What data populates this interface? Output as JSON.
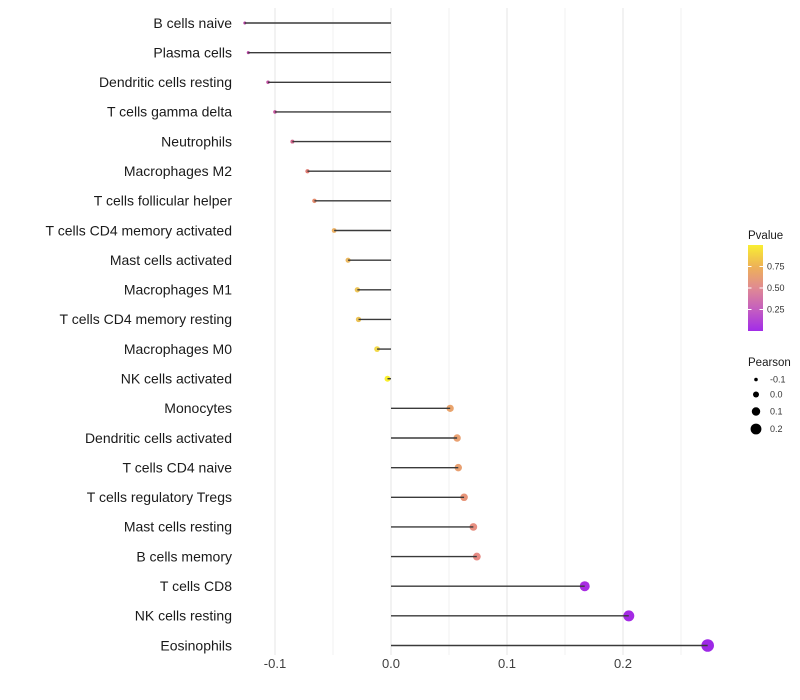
{
  "figure": {
    "description": "Horizontal lollipop chart of Pearson correlation for 22 immune cell types, dot color mapped to Pvalue (yellow high, purple low) and dot size mapped to Pearson value"
  },
  "chart_data": {
    "type": "scatter",
    "variant": "lollipop",
    "orientation": "horizontal",
    "title": "",
    "xlabel": "",
    "ylabel": "",
    "xlim": [
      -0.146,
      0.29
    ],
    "grid": "vertical-only",
    "x_ticks": [
      -0.1,
      0.0,
      0.1,
      0.2
    ],
    "x_tick_labels": [
      "-0.1",
      "0.0",
      "0.1",
      "0.2"
    ],
    "x_minor_ticks": [
      -0.05,
      0.05,
      0.15,
      0.25
    ],
    "categories": [
      "B cells naive",
      "Plasma cells",
      "Dendritic cells resting",
      "T cells gamma delta",
      "Neutrophils",
      "Macrophages M2",
      "T cells follicular helper",
      "T cells CD4 memory activated",
      "Mast cells activated",
      "Macrophages M1",
      "T cells CD4 memory resting",
      "Macrophages M0",
      "NK cells activated",
      "Monocytes",
      "Dendritic cells activated",
      "T cells CD4 naive",
      "T cells regulatory  Tregs",
      "Mast cells resting",
      "B cells memory",
      "T cells CD8",
      "NK cells resting",
      "Eosinophils"
    ],
    "points": [
      {
        "label": "B cells naive",
        "pearson": -0.126,
        "pvalue": 0.25,
        "color": "#b23c9e"
      },
      {
        "label": "Plasma cells",
        "pearson": -0.123,
        "pvalue": 0.26,
        "color": "#b33d9d"
      },
      {
        "label": "Dendritic cells resting",
        "pearson": -0.106,
        "pvalue": 0.31,
        "color": "#c04fa0"
      },
      {
        "label": "T cells gamma delta",
        "pearson": -0.1,
        "pvalue": 0.33,
        "color": "#c2529c"
      },
      {
        "label": "Neutrophils",
        "pearson": -0.085,
        "pvalue": 0.41,
        "color": "#cf648b"
      },
      {
        "label": "Macrophages M2",
        "pearson": -0.072,
        "pvalue": 0.52,
        "color": "#df7a72"
      },
      {
        "label": "T cells follicular helper",
        "pearson": -0.066,
        "pvalue": 0.57,
        "color": "#e28a6c"
      },
      {
        "label": "T cells CD4 memory activated",
        "pearson": -0.049,
        "pvalue": 0.74,
        "color": "#edb163"
      },
      {
        "label": "Mast cells activated",
        "pearson": -0.037,
        "pvalue": 0.77,
        "color": "#ebb85f"
      },
      {
        "label": "Macrophages M1",
        "pearson": -0.029,
        "pvalue": 0.81,
        "color": "#edc457"
      },
      {
        "label": "T cells CD4 memory resting",
        "pearson": -0.028,
        "pvalue": 0.81,
        "color": "#edc457"
      },
      {
        "label": "Macrophages M0",
        "pearson": -0.012,
        "pvalue": 0.9,
        "color": "#f2d94a"
      },
      {
        "label": "NK cells activated",
        "pearson": -0.003,
        "pvalue": 0.97,
        "color": "#f9ef2e"
      },
      {
        "label": "Monocytes",
        "pearson": 0.051,
        "pvalue": 0.68,
        "color": "#e9a46d"
      },
      {
        "label": "Dendritic cells activated",
        "pearson": 0.057,
        "pvalue": 0.66,
        "color": "#e9a172"
      },
      {
        "label": "T cells CD4 naive",
        "pearson": 0.058,
        "pvalue": 0.66,
        "color": "#e8a071"
      },
      {
        "label": "T cells regulatory  Tregs",
        "pearson": 0.063,
        "pvalue": 0.59,
        "color": "#e79478"
      },
      {
        "label": "Mast cells resting",
        "pearson": 0.071,
        "pvalue": 0.55,
        "color": "#e78f81"
      },
      {
        "label": "B cells memory",
        "pearson": 0.074,
        "pvalue": 0.52,
        "color": "#e68b84"
      },
      {
        "label": "T cells CD8",
        "pearson": 0.167,
        "pvalue": 0.08,
        "color": "#a82ce2"
      },
      {
        "label": "NK cells resting",
        "pearson": 0.205,
        "pvalue": 0.06,
        "color": "#a42ae4"
      },
      {
        "label": "Eosinophils",
        "pearson": 0.273,
        "pvalue": 0.04,
        "color": "#9d28e6"
      }
    ],
    "legend_pvalue": {
      "title": "Pvalue",
      "tick_labels": [
        "0.75",
        "0.50",
        "0.25"
      ],
      "tick_values": [
        0.75,
        0.5,
        0.25
      ],
      "domain": [
        0,
        1
      ],
      "gradient_top_to_bottom": [
        "#f9ee32",
        "#eeb257",
        "#e08a92",
        "#c45ec0",
        "#a22ce8"
      ],
      "position": "right"
    },
    "legend_pearson": {
      "title": "Pearson",
      "entries": [
        -0.1,
        0.0,
        0.1,
        0.2
      ],
      "entry_labels": [
        "-0.1",
        "0.0",
        "0.1",
        "0.2"
      ],
      "dot_color": "#000000",
      "position": "right"
    },
    "style": {
      "stem_color": "#3a3a3a",
      "major_grid_color": "#e6e6e6",
      "minor_grid_color": "#f2f2f2",
      "background": "#ffffff"
    }
  }
}
